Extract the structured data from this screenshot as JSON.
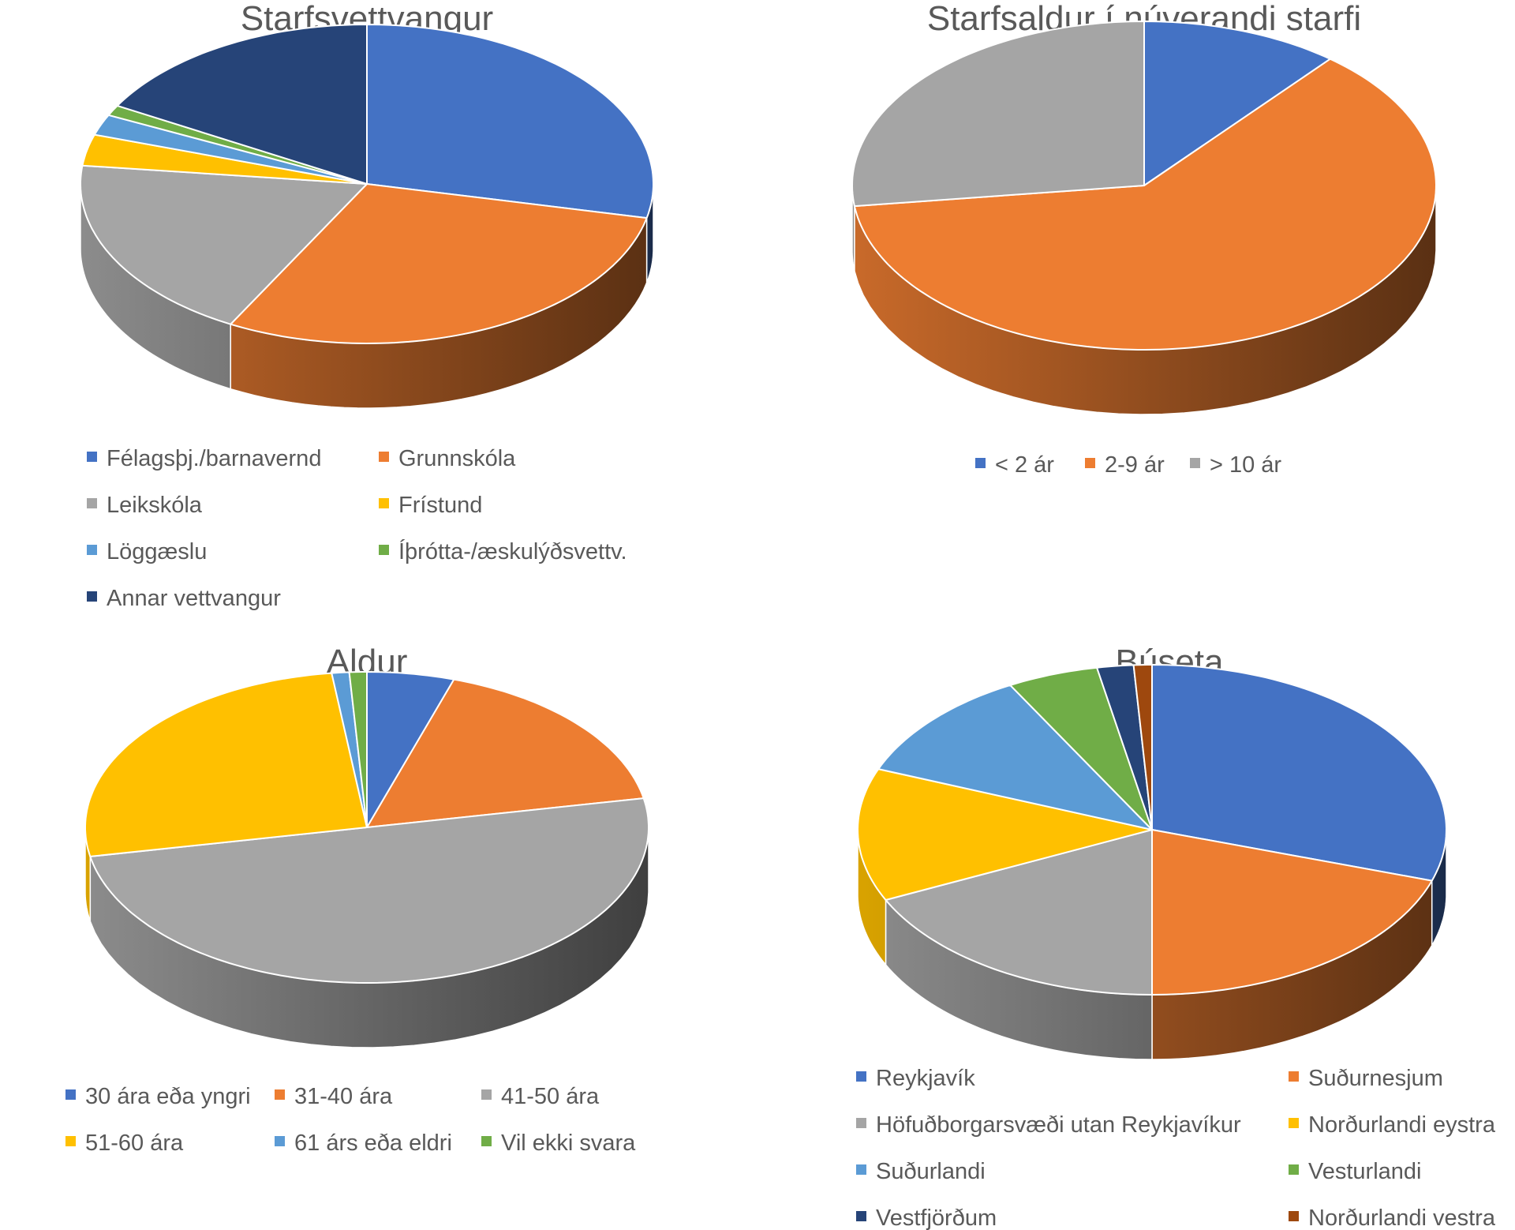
{
  "chart_data": [
    {
      "type": "pie",
      "title": "Starfsvettvangur",
      "categories": [
        "Félagsþj./barnavernd",
        "Grunnskóla",
        "Leikskóla",
        "Frístund",
        "Löggæslu",
        "Íþrótta-/æskulýðsvettv.",
        "Annar vettvangur"
      ],
      "values": [
        27.0,
        28.0,
        18.0,
        3.0,
        2.0,
        1.0,
        16.0
      ],
      "colors": [
        "#4472C4",
        "#ED7D31",
        "#A5A5A5",
        "#FFC000",
        "#5B9BD5",
        "#70AD47",
        "#264478"
      ],
      "legend": "bottom"
    },
    {
      "type": "pie",
      "title": "Starfsaldur í núverandi starfi",
      "categories": [
        "< 2 ár",
        "2-9 ár",
        "> 10 ár"
      ],
      "values": [
        11.0,
        62.0,
        27.0
      ],
      "colors": [
        "#4472C4",
        "#ED7D31",
        "#A5A5A5"
      ],
      "legend": "bottom"
    },
    {
      "type": "pie",
      "title": "Aldur",
      "categories": [
        "30 ára eða yngri",
        "31-40 ára",
        "41-50 ára",
        "51-60 ára",
        "61 árs eða eldri",
        "Vil ekki svara"
      ],
      "values": [
        5.0,
        17.0,
        50.0,
        26.0,
        1.0,
        1.0
      ],
      "colors": [
        "#4472C4",
        "#ED7D31",
        "#A5A5A5",
        "#FFC000",
        "#5B9BD5",
        "#70AD47"
      ],
      "legend": "bottom"
    },
    {
      "type": "pie",
      "title": "Búseta",
      "categories": [
        "Reykjavík",
        "Suðurnesjum",
        "Höfuðborgarsvæði utan Reykjavíkur",
        "Norðurlandi eystra",
        "Suðurlandi",
        "Vesturlandi",
        "Vestfjörðum",
        "Norðurlandi vestra"
      ],
      "values": [
        30.0,
        20.0,
        18.0,
        13.0,
        11.0,
        5.0,
        2.0,
        1.0
      ],
      "colors": [
        "#4472C4",
        "#ED7D31",
        "#A5A5A5",
        "#FFC000",
        "#5B9BD5",
        "#70AD47",
        "#264478",
        "#9E480E"
      ],
      "legend": "bottom"
    }
  ]
}
